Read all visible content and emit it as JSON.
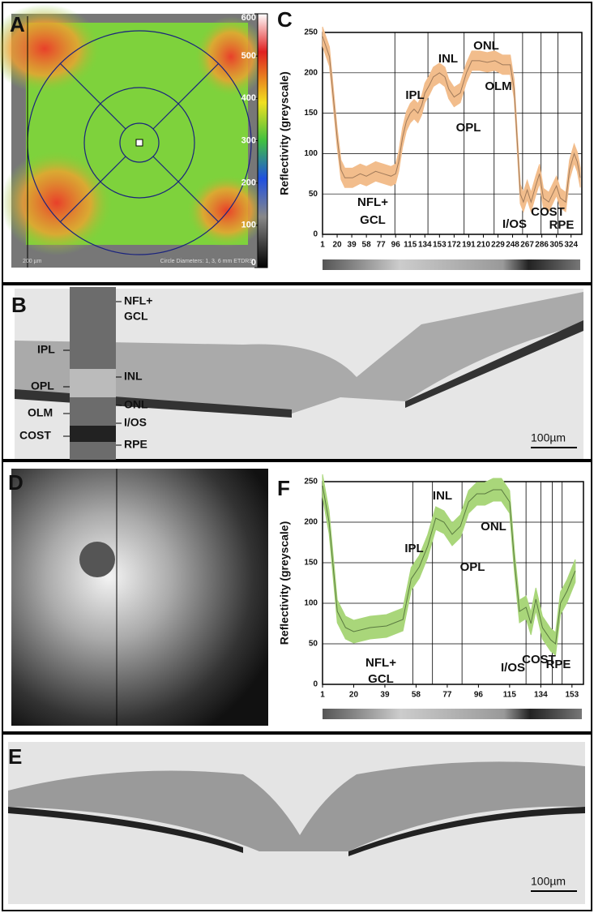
{
  "figure_labels": [
    "A",
    "B",
    "C",
    "D",
    "E",
    "F"
  ],
  "panel_a": {
    "colorbar_lim": [
      0,
      600
    ],
    "colorbar_ticks": [
      0,
      100,
      200,
      300,
      400,
      500,
      600
    ],
    "scale_bar": "200 µm",
    "caption": "Circle Diameters: 1, 3, 6 mm ETDRS"
  },
  "panel_b": {
    "left_labels": [
      "IPL",
      "OPL",
      "OLM",
      "COST"
    ],
    "right_labels": [
      "NFL+",
      "GCL",
      "INL",
      "ONL",
      "I/OS",
      "RPE"
    ],
    "scale_bar": "100µm"
  },
  "panel_e": {
    "scale_bar": "100µm"
  },
  "chart_data": [
    {
      "type": "line",
      "ylabel": "Reflectivity (greyscale)",
      "xlim": [
        1,
        338
      ],
      "ylim": [
        0,
        250
      ],
      "xticks": [
        1,
        20,
        39,
        58,
        77,
        96,
        115,
        134,
        153,
        172,
        191,
        210,
        229,
        248,
        267,
        286,
        305,
        324
      ],
      "yticks": [
        0,
        50,
        100,
        150,
        200,
        250
      ],
      "grid": true,
      "boundaries": [
        95,
        138,
        185,
        224,
        261,
        285,
        307
      ],
      "band_color": "#f2bd8c",
      "line_color": "#a07a5a",
      "spread": 12,
      "x": [
        1,
        10,
        20,
        25,
        30,
        40,
        50,
        58,
        70,
        80,
        90,
        96,
        100,
        105,
        110,
        115,
        120,
        125,
        130,
        134,
        140,
        145,
        153,
        160,
        165,
        172,
        180,
        188,
        195,
        205,
        215,
        225,
        235,
        245,
        250,
        255,
        258,
        262,
        267,
        272,
        278,
        283,
        288,
        295,
        300,
        305,
        310,
        317,
        322,
        328,
        332,
        336
      ],
      "series": [
        {
          "values": [
            245,
            220,
            120,
            80,
            70,
            70,
            75,
            72,
            78,
            75,
            72,
            75,
            90,
            120,
            140,
            150,
            155,
            150,
            160,
            175,
            185,
            195,
            200,
            195,
            180,
            170,
            175,
            200,
            215,
            215,
            213,
            215,
            210,
            210,
            180,
            100,
            50,
            40,
            55,
            40,
            60,
            75,
            45,
            40,
            50,
            60,
            45,
            40,
            80,
            100,
            90,
            70
          ]
        }
      ],
      "annotations": [
        "NFL+",
        "GCL",
        "IPL",
        "INL",
        "ONL",
        "OLM",
        "OPL",
        "I/OS",
        "COST",
        "RPE"
      ]
    },
    {
      "type": "line",
      "ylabel": "Reflectivity (greyscale)",
      "xlim": [
        1,
        160
      ],
      "ylim": [
        0,
        250
      ],
      "xticks": [
        1,
        20,
        39,
        58,
        77,
        96,
        115,
        134,
        153
      ],
      "yticks": [
        0,
        50,
        100,
        150,
        200,
        250
      ],
      "grid": true,
      "boundaries": [
        56,
        68,
        86,
        125,
        134,
        141,
        147
      ],
      "band_color": "#a9d67a",
      "line_color": "#5a7a40",
      "spread": 14,
      "x": [
        1,
        5,
        10,
        15,
        20,
        30,
        40,
        50,
        55,
        60,
        65,
        70,
        75,
        80,
        85,
        90,
        95,
        100,
        105,
        110,
        115,
        118,
        121,
        125,
        128,
        131,
        135,
        140,
        143,
        146,
        150,
        155
      ],
      "series": [
        {
          "values": [
            245,
            200,
            90,
            70,
            65,
            70,
            72,
            80,
            130,
            145,
            170,
            205,
            200,
            185,
            195,
            225,
            235,
            235,
            240,
            240,
            225,
            150,
            90,
            95,
            75,
            105,
            70,
            55,
            50,
            100,
            115,
            140
          ]
        }
      ],
      "annotations": [
        "INL",
        "ONL",
        "IPL",
        "OPL",
        "NFL+",
        "GCL",
        "COST",
        "I/OS",
        "RPE"
      ]
    }
  ]
}
